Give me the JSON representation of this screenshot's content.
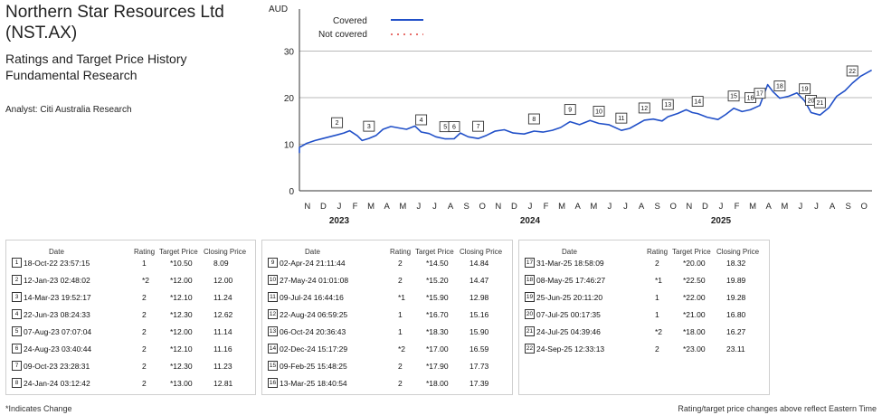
{
  "header": {
    "company_line1": "Northern Star Resources Ltd",
    "company_line2": "(NST.AX)",
    "subtitle_line1": "Ratings and Target Price History",
    "subtitle_line2": "Fundamental Research",
    "analyst": "Analyst: Citi Australia Research"
  },
  "chart_data": {
    "type": "line",
    "ylabel": "AUD",
    "yticks": [
      0,
      10,
      20,
      30
    ],
    "ylim": [
      0,
      30
    ],
    "grid": "horizontal",
    "legend_placement": "top-left",
    "legend": [
      {
        "name": "Covered",
        "style": "solid",
        "color": "#2150c8"
      },
      {
        "name": "Not covered",
        "style": "dotted",
        "color": "#e0403c"
      }
    ],
    "month_ticks": [
      "N",
      "D",
      "J",
      "F",
      "M",
      "A",
      "M",
      "J",
      "J",
      "A",
      "S",
      "O",
      "N",
      "D",
      "J",
      "F",
      "M",
      "A",
      "M",
      "J",
      "J",
      "A",
      "S",
      "O",
      "N",
      "D",
      "J",
      "F",
      "M",
      "A",
      "M",
      "J",
      "J",
      "A",
      "S",
      "O"
    ],
    "year_labels": [
      {
        "label": "2023",
        "month_index": 2
      },
      {
        "label": "2024",
        "month_index": 14
      },
      {
        "label": "2025",
        "month_index": 26
      }
    ],
    "x_start": "2022-11",
    "series": [
      {
        "name": "Covered",
        "color": "#2150c8",
        "points": [
          [
            "2022-10-18",
            8.09
          ],
          [
            "2022-11-01",
            9.3
          ],
          [
            "2022-11-15",
            10.2
          ],
          [
            "2022-12-01",
            10.8
          ],
          [
            "2022-12-15",
            11.2
          ],
          [
            "2023-01-12",
            12.0
          ],
          [
            "2023-01-25",
            12.4
          ],
          [
            "2023-02-05",
            12.9
          ],
          [
            "2023-02-20",
            11.8
          ],
          [
            "2023-03-01",
            10.8
          ],
          [
            "2023-03-14",
            11.24
          ],
          [
            "2023-03-28",
            11.9
          ],
          [
            "2023-04-10",
            13.2
          ],
          [
            "2023-04-25",
            13.8
          ],
          [
            "2023-05-10",
            13.5
          ],
          [
            "2023-05-25",
            13.2
          ],
          [
            "2023-06-10",
            13.9
          ],
          [
            "2023-06-22",
            12.62
          ],
          [
            "2023-07-07",
            12.3
          ],
          [
            "2023-07-20",
            11.6
          ],
          [
            "2023-08-07",
            11.14
          ],
          [
            "2023-08-24",
            11.16
          ],
          [
            "2023-09-05",
            12.4
          ],
          [
            "2023-09-20",
            11.6
          ],
          [
            "2023-10-09",
            11.23
          ],
          [
            "2023-10-25",
            11.9
          ],
          [
            "2023-11-10",
            12.8
          ],
          [
            "2023-11-28",
            13.1
          ],
          [
            "2023-12-15",
            12.4
          ],
          [
            "2024-01-05",
            12.2
          ],
          [
            "2024-01-24",
            12.81
          ],
          [
            "2024-02-10",
            12.6
          ],
          [
            "2024-02-28",
            13.0
          ],
          [
            "2024-03-15",
            13.6
          ],
          [
            "2024-04-02",
            14.84
          ],
          [
            "2024-04-20",
            14.2
          ],
          [
            "2024-05-10",
            15.1
          ],
          [
            "2024-05-27",
            14.47
          ],
          [
            "2024-06-15",
            14.2
          ],
          [
            "2024-07-09",
            12.98
          ],
          [
            "2024-07-25",
            13.4
          ],
          [
            "2024-08-22",
            15.16
          ],
          [
            "2024-09-08",
            15.4
          ],
          [
            "2024-09-25",
            15.0
          ],
          [
            "2024-10-06",
            15.9
          ],
          [
            "2024-10-25",
            16.6
          ],
          [
            "2024-11-10",
            17.4
          ],
          [
            "2024-11-22",
            16.8
          ],
          [
            "2024-12-02",
            16.59
          ],
          [
            "2024-12-20",
            15.8
          ],
          [
            "2025-01-10",
            15.3
          ],
          [
            "2025-01-25",
            16.4
          ],
          [
            "2025-02-09",
            17.73
          ],
          [
            "2025-02-25",
            17.0
          ],
          [
            "2025-03-13",
            17.39
          ],
          [
            "2025-03-31",
            18.32
          ],
          [
            "2025-04-15",
            22.8
          ],
          [
            "2025-04-25",
            21.3
          ],
          [
            "2025-05-08",
            19.89
          ],
          [
            "2025-05-25",
            20.3
          ],
          [
            "2025-06-10",
            21.0
          ],
          [
            "2025-06-25",
            19.28
          ],
          [
            "2025-07-07",
            16.8
          ],
          [
            "2025-07-24",
            16.27
          ],
          [
            "2025-08-10",
            17.8
          ],
          [
            "2025-08-25",
            20.3
          ],
          [
            "2025-09-10",
            21.5
          ],
          [
            "2025-09-24",
            23.11
          ],
          [
            "2025-10-10",
            24.6
          ],
          [
            "2025-10-31",
            25.9
          ]
        ]
      }
    ],
    "rating_markers": [
      {
        "id": "2",
        "date": "2023-01-12",
        "price": 12.0
      },
      {
        "id": "3",
        "date": "2023-03-14",
        "price": 11.24
      },
      {
        "id": "4",
        "date": "2023-06-22",
        "price": 12.62
      },
      {
        "id": "5",
        "date": "2023-08-07",
        "price": 11.14
      },
      {
        "id": "6",
        "date": "2023-08-24",
        "price": 11.16
      },
      {
        "id": "7",
        "date": "2023-10-09",
        "price": 11.23
      },
      {
        "id": "8",
        "date": "2024-01-24",
        "price": 12.81
      },
      {
        "id": "9",
        "date": "2024-04-02",
        "price": 14.84
      },
      {
        "id": "10",
        "date": "2024-05-27",
        "price": 14.47
      },
      {
        "id": "11",
        "date": "2024-07-09",
        "price": 12.98
      },
      {
        "id": "12",
        "date": "2024-08-22",
        "price": 15.16
      },
      {
        "id": "13",
        "date": "2024-10-06",
        "price": 15.9
      },
      {
        "id": "14",
        "date": "2024-12-02",
        "price": 16.59
      },
      {
        "id": "15",
        "date": "2025-02-09",
        "price": 17.73
      },
      {
        "id": "16",
        "date": "2025-03-13",
        "price": 17.39
      },
      {
        "id": "17",
        "date": "2025-03-31",
        "price": 18.32
      },
      {
        "id": "18",
        "date": "2025-05-08",
        "price": 19.89
      },
      {
        "id": "19",
        "date": "2025-06-25",
        "price": 19.28
      },
      {
        "id": "20",
        "date": "2025-07-07",
        "price": 16.8
      },
      {
        "id": "21",
        "date": "2025-07-24",
        "price": 16.27
      },
      {
        "id": "22",
        "date": "2025-09-24",
        "price": 23.11
      }
    ]
  },
  "table": {
    "headers": {
      "date": "Date",
      "rating": "Rating",
      "target": "Target Price",
      "closing": "Closing Price"
    },
    "columns": [
      [
        {
          "n": "1",
          "date": "18-Oct-22 23:57:15",
          "rating": "1",
          "target": "*10.50",
          "closing": "8.09"
        },
        {
          "n": "2",
          "date": "12-Jan-23 02:48:02",
          "rating": "*2",
          "target": "*12.00",
          "closing": "12.00"
        },
        {
          "n": "3",
          "date": "14-Mar-23 19:52:17",
          "rating": "2",
          "target": "*12.10",
          "closing": "11.24"
        },
        {
          "n": "4",
          "date": "22-Jun-23 08:24:33",
          "rating": "2",
          "target": "*12.30",
          "closing": "12.62"
        },
        {
          "n": "5",
          "date": "07-Aug-23 07:07:04",
          "rating": "2",
          "target": "*12.00",
          "closing": "11.14"
        },
        {
          "n": "6",
          "date": "24-Aug-23 03:40:44",
          "rating": "2",
          "target": "*12.10",
          "closing": "11.16"
        },
        {
          "n": "7",
          "date": "09-Oct-23 23:28:31",
          "rating": "2",
          "target": "*12.30",
          "closing": "11.23"
        },
        {
          "n": "8",
          "date": "24-Jan-24 03:12:42",
          "rating": "2",
          "target": "*13.00",
          "closing": "12.81"
        }
      ],
      [
        {
          "n": "9",
          "date": "02-Apr-24 21:11:44",
          "rating": "2",
          "target": "*14.50",
          "closing": "14.84"
        },
        {
          "n": "10",
          "date": "27-May-24 01:01:08",
          "rating": "2",
          "target": "*15.20",
          "closing": "14.47"
        },
        {
          "n": "11",
          "date": "09-Jul-24 16:44:16",
          "rating": "*1",
          "target": "*15.90",
          "closing": "12.98"
        },
        {
          "n": "12",
          "date": "22-Aug-24 06:59:25",
          "rating": "1",
          "target": "*16.70",
          "closing": "15.16"
        },
        {
          "n": "13",
          "date": "06-Oct-24 20:36:43",
          "rating": "1",
          "target": "*18.30",
          "closing": "15.90"
        },
        {
          "n": "14",
          "date": "02-Dec-24 15:17:29",
          "rating": "*2",
          "target": "*17.00",
          "closing": "16.59"
        },
        {
          "n": "15",
          "date": "09-Feb-25 15:48:25",
          "rating": "2",
          "target": "*17.90",
          "closing": "17.73"
        },
        {
          "n": "16",
          "date": "13-Mar-25 18:40:54",
          "rating": "2",
          "target": "*18.00",
          "closing": "17.39"
        }
      ],
      [
        {
          "n": "17",
          "date": "31-Mar-25 18:58:09",
          "rating": "2",
          "target": "*20.00",
          "closing": "18.32"
        },
        {
          "n": "18",
          "date": "08-May-25 17:46:27",
          "rating": "*1",
          "target": "*22.50",
          "closing": "19.89"
        },
        {
          "n": "19",
          "date": "25-Jun-25 20:11:20",
          "rating": "1",
          "target": "*22.00",
          "closing": "19.28"
        },
        {
          "n": "20",
          "date": "07-Jul-25 00:17:35",
          "rating": "1",
          "target": "*21.00",
          "closing": "16.80"
        },
        {
          "n": "21",
          "date": "24-Jul-25 04:39:46",
          "rating": "*2",
          "target": "*18.00",
          "closing": "16.27"
        },
        {
          "n": "22",
          "date": "24-Sep-25 12:33:13",
          "rating": "2",
          "target": "*23.00",
          "closing": "23.11"
        }
      ]
    ]
  },
  "footer": {
    "left_note": "*Indicates Change",
    "right_note": "Rating/target price changes above reflect Eastern Time"
  }
}
